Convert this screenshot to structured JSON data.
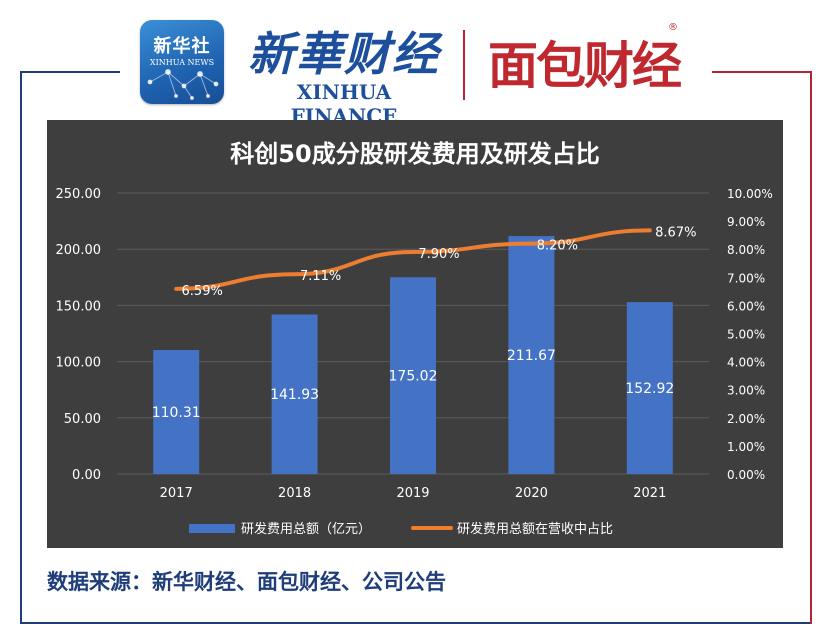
{
  "header": {
    "xinhua_logo_cn": "新华社",
    "xinhua_logo_en": "XINHUA NEWS",
    "brand_cn": "新華财经",
    "brand_en": "XINHUA FINANCE",
    "partner_brand": "面包财经",
    "partner_reg": "®"
  },
  "colors": {
    "frame_blue": "#1f3d7a",
    "frame_red": "#b32434",
    "chart_bg": "#3e3e3e",
    "bar": "#4472c4",
    "line": "#ed7d31"
  },
  "chart_data": {
    "type": "bar",
    "title": "科创50成分股研发费用及研发占比",
    "categories": [
      "2017",
      "2018",
      "2019",
      "2020",
      "2021"
    ],
    "series": [
      {
        "name": "研发费用总额（亿元）",
        "type": "bar",
        "axis": "left",
        "values": [
          110.31,
          141.93,
          175.02,
          211.67,
          152.92
        ],
        "labels": [
          "110.31",
          "141.93",
          "175.02",
          "211.67",
          "152.92"
        ]
      },
      {
        "name": "研发费用总额在营收中占比",
        "type": "line",
        "axis": "right",
        "values": [
          6.59,
          7.11,
          7.9,
          8.2,
          8.67
        ],
        "labels": [
          "6.59%",
          "7.11%",
          "7.90%",
          "8.20%",
          "8.67%"
        ]
      }
    ],
    "y_left": {
      "ylim": [
        0,
        250
      ],
      "ticks": [
        "0.00",
        "50.00",
        "100.00",
        "150.00",
        "200.00",
        "250.00"
      ]
    },
    "y_right": {
      "ylim": [
        0,
        10
      ],
      "ticks": [
        "0.00%",
        "1.00%",
        "2.00%",
        "3.00%",
        "4.00%",
        "5.00%",
        "6.00%",
        "7.00%",
        "8.00%",
        "9.00%",
        "10.00%"
      ]
    },
    "grid": true,
    "legend_position": "bottom"
  },
  "footer": {
    "source": "数据来源：新华财经、面包财经、公司公告"
  }
}
